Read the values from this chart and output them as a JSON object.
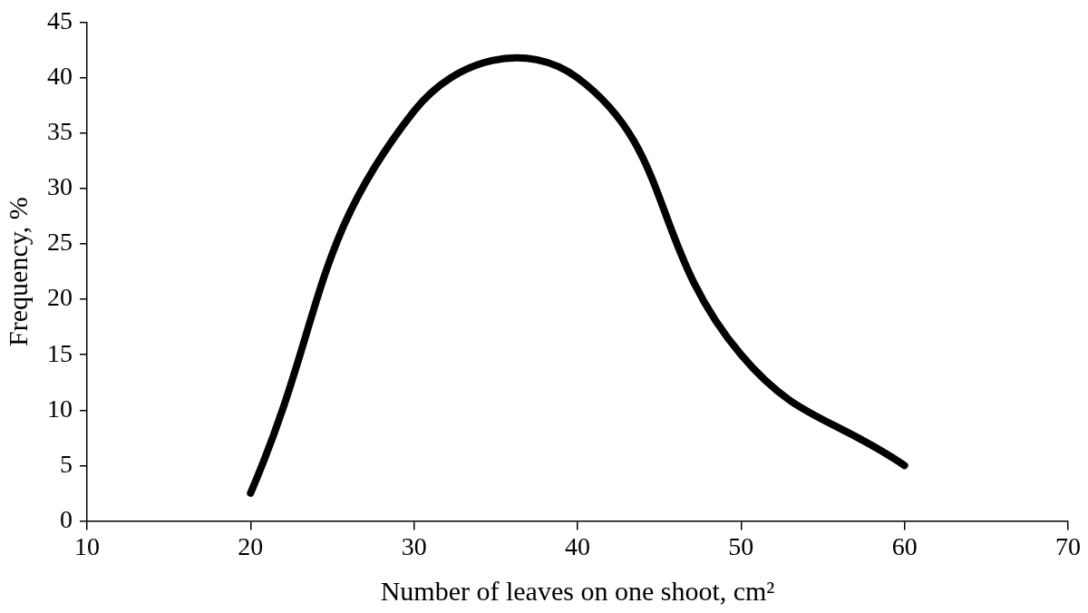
{
  "chart_data": {
    "type": "line",
    "xlabel": "Number of leaves on one shoot, cm²",
    "ylabel": "Frequency, %",
    "x": [
      20,
      30,
      40,
      50,
      60
    ],
    "series": [
      {
        "color": "#000000",
        "values": [
          2.5,
          37,
          40,
          15,
          5
        ]
      }
    ],
    "xlim": [
      10,
      70
    ],
    "xticks": [
      10,
      20,
      30,
      40,
      50,
      60,
      70
    ],
    "ylim": [
      0,
      45
    ],
    "yticks": [
      0,
      5,
      10,
      15,
      20,
      25,
      30,
      35,
      40,
      45
    ],
    "grid": false,
    "legend": false,
    "marker": "none",
    "line_style": "solid"
  }
}
